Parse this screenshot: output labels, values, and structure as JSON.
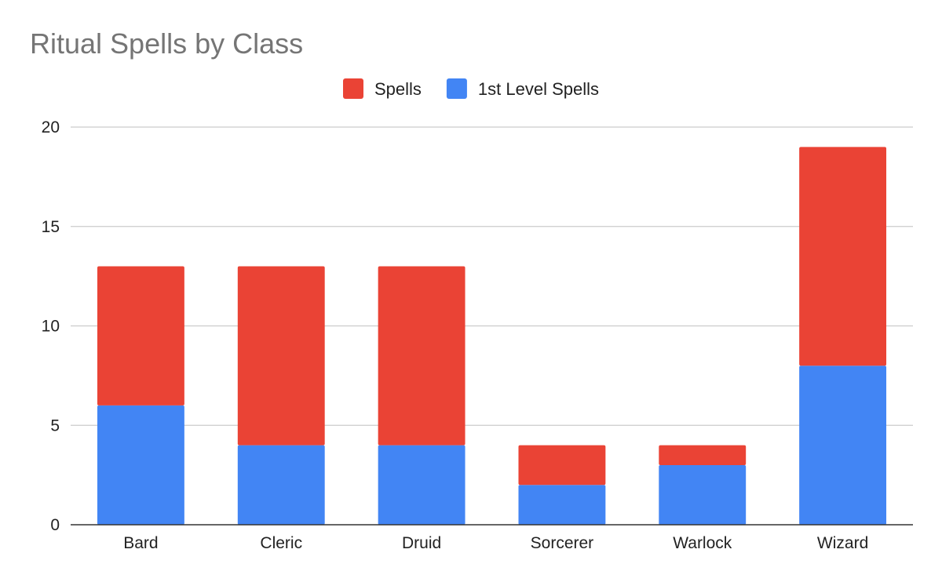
{
  "chart_data": {
    "type": "bar",
    "stacked": true,
    "title": "Ritual Spells by Class",
    "xlabel": "",
    "ylabel": "",
    "categories": [
      "Bard",
      "Cleric",
      "Druid",
      "Sorcerer",
      "Warlock",
      "Wizard"
    ],
    "series": [
      {
        "name": "1st Level Spells",
        "color": "#4285f4",
        "values": [
          6,
          4,
          4,
          2,
          3,
          8
        ]
      },
      {
        "name": "Spells",
        "color": "#ea4335",
        "values": [
          7,
          9,
          9,
          2,
          1,
          11
        ]
      }
    ],
    "legend_order": [
      "Spells",
      "1st Level Spells"
    ],
    "legend_position": "top-center",
    "ylim": [
      0,
      20
    ],
    "yticks": [
      0,
      5,
      10,
      15,
      20
    ],
    "grid": true
  }
}
